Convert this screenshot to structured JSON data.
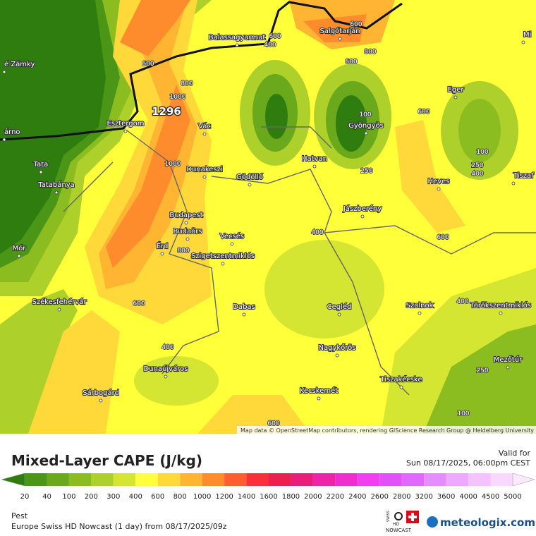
{
  "map": {
    "labels": [
      "é Zámky",
      "árno",
      "Balassagyarmat",
      "Salgótarján",
      "Mi",
      "Eger",
      "Esztergom",
      "Vác",
      "Gyöngyös",
      "Tata",
      "Tatabánya",
      "Dunakeszi",
      "Gödöllő",
      "Hatvan",
      "Heves",
      "Tiszaf",
      "Jászberény",
      "Budapest",
      "Budaörs",
      "Vecsés",
      "Mór",
      "Érd",
      "Szigetszentmiklós",
      "Székesfehérvár",
      "Dabas",
      "Cegléd",
      "Szolnok",
      "Törökszentmiklós",
      "Nagykőrös",
      "Mezőtúr",
      "Dunaújváros",
      "Tiszakécske",
      "Sárbogárd",
      "Kecskemét"
    ],
    "max_value": "1296",
    "contour_labels": [
      "600",
      "400",
      "600",
      "800",
      "600",
      "600",
      "800",
      "1000",
      "100",
      "600",
      "100",
      "250",
      "400",
      "250",
      "1000",
      "400",
      "600",
      "800",
      "600",
      "400",
      "400",
      "250",
      "100",
      "600"
    ],
    "attribution": "Map data © OpenStreetMap contributors, rendering GIScience Research Group @ Heidelberg University"
  },
  "header": {
    "title": "Mixed-Layer CAPE (J/kg)",
    "valid_label": "Valid for",
    "valid_time": "Sun 08/17/2025, 06:00pm CEST"
  },
  "legend": {
    "labels": [
      "20",
      "40",
      "100",
      "200",
      "300",
      "400",
      "600",
      "800",
      "1000",
      "1200",
      "1400",
      "1600",
      "1800",
      "2000",
      "2200",
      "2400",
      "2600",
      "2800",
      "3200",
      "3600",
      "4000",
      "4500",
      "5000"
    ],
    "colors": [
      "#2f7d0f",
      "#4b9616",
      "#6aa81c",
      "#8bbd21",
      "#aed02a",
      "#d4e632",
      "#ffff3a",
      "#ffd83a",
      "#ffb432",
      "#ff8c2c",
      "#ff5e30",
      "#ff2e3a",
      "#f01e4e",
      "#e81e7a",
      "#ec26a6",
      "#f02ed0",
      "#f03ef0",
      "#e250f8",
      "#e068ff",
      "#e68cff",
      "#eea8ff",
      "#f4c2ff",
      "#f8d8ff",
      "#fce8ff"
    ]
  },
  "footer": {
    "location": "Pest",
    "model": "Europe Swiss HD Nowcast (1 day) from 08/17/2025/09z",
    "badge_top": "SWISS",
    "badge_mid": "HD",
    "badge_bottom": "NOWCAST",
    "brand": "meteologix.com"
  }
}
